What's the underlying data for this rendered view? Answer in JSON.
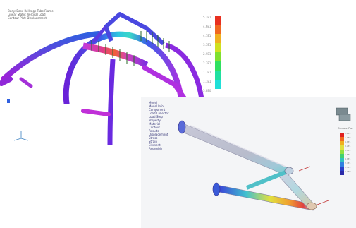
{
  "top_view": {
    "header_lines": [
      "Body: Base Rollcage Tube Frame",
      "Linear Static: Vertical Load",
      "Contour Plot: Displacement"
    ],
    "legend_title": "",
    "legend_labels": [
      "5.2E1",
      "4.6E1",
      "4.1E1",
      "3.5E1",
      "2.9E1",
      "2.3E1",
      "1.7E1",
      "1.1E1",
      "5.8E0"
    ],
    "legend_colors": [
      "#e83020",
      "#f06820",
      "#f0b020",
      "#d0e020",
      "#80e030",
      "#30e060",
      "#20e0a0",
      "#20e0d8"
    ],
    "axis_labels": [
      "",
      "",
      ""
    ]
  },
  "bottom_view": {
    "tree_items": [
      "Model",
      "Model Info",
      "Component",
      "Load Collector",
      "Load Step",
      "Property",
      "Material",
      "Contour",
      "Results",
      "Displacement",
      "Stress",
      "Strain",
      "Element",
      "Assembly"
    ],
    "legend_title": "Contour Plot",
    "legend_labels": [
      "1.2E2",
      "1.1E2",
      "9.6E1",
      "8.2E1",
      "6.9E1",
      "5.5E1",
      "4.1E1",
      "2.7E1",
      "1.4E1",
      "0.0E0"
    ],
    "legend_colors": [
      "#e02020",
      "#f06a20",
      "#f0b020",
      "#e0e040",
      "#90e040",
      "#40d070",
      "#30c0c0",
      "#3080e0",
      "#2a40c8",
      "#2a2aa8"
    ]
  }
}
